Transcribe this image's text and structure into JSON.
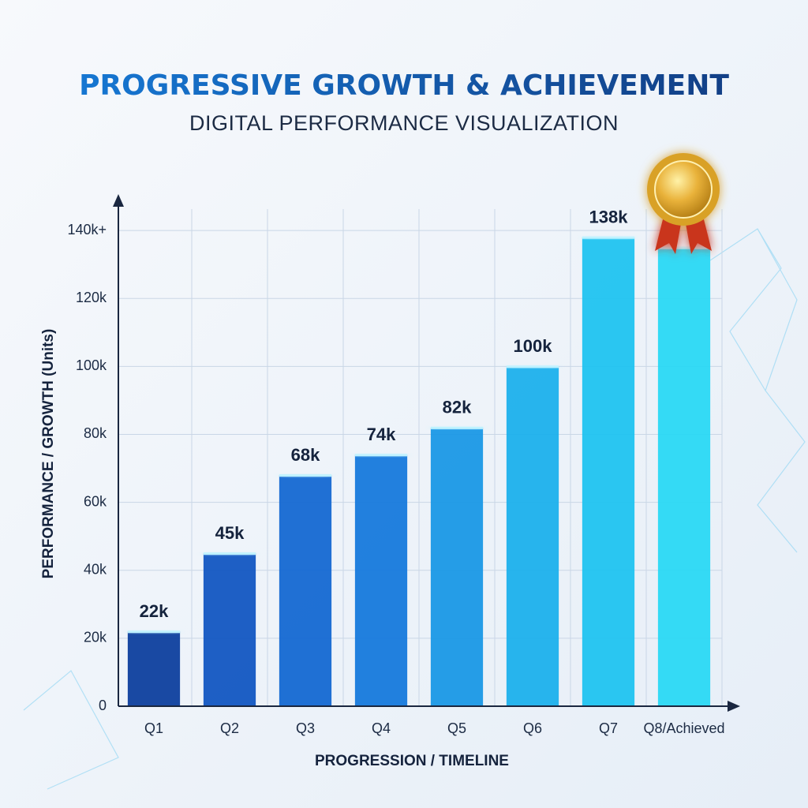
{
  "chart_data": {
    "type": "bar",
    "title": "PROGRESSIVE GROWTH & ACHIEVEMENT",
    "subtitle": "DIGITAL PERFORMANCE VISUALIZATION",
    "y_label": "PERFORMANCE / GROWTH (Units)",
    "x_label": "PROGRESSION / TIMELINE",
    "categories": [
      "Q1",
      "Q2",
      "Q3",
      "Q4",
      "Q5",
      "Q6",
      "Q7",
      "Q8/Achieved"
    ],
    "values": [
      22000,
      45000,
      68000,
      74000,
      82000,
      100000,
      138000,
      135000
    ],
    "value_labels": [
      "22k",
      "45k",
      "68k",
      "74k",
      "82k",
      "100k",
      "138k",
      null
    ],
    "colors": [
      "#0d3f9e",
      "#1256c2",
      "#1468d2",
      "#1679dc",
      "#1a98e6",
      "#1cb0ec",
      "#20c3f0",
      "#2ad8f4"
    ],
    "ylim": [
      0,
      150000
    ],
    "yticks": [
      0,
      {
        "value": 20000,
        "label": "20k"
      },
      {
        "value": 40000,
        "label": "40k"
      },
      {
        "value": 60000,
        "label": "60k"
      },
      {
        "value": 80000,
        "label": "80k"
      },
      {
        "value": 100000,
        "label": "100k"
      },
      {
        "value": 120000,
        "label": "120k"
      },
      {
        "value": 140000,
        "label": "140k+"
      }
    ],
    "grid": true
  }
}
